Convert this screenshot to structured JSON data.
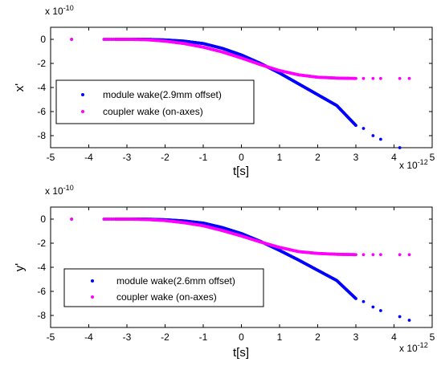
{
  "chart_data": [
    {
      "type": "scatter",
      "title": "",
      "xlabel": "t[s]",
      "ylabel": "x'",
      "x_multiplier": "x 10",
      "x_exponent": "-12",
      "y_multiplier": "x 10",
      "y_exponent": "-10",
      "xlim": [
        -5,
        5
      ],
      "ylim": [
        -9,
        1
      ],
      "xticks": [
        "-5",
        "-4",
        "-3",
        "-2",
        "-1",
        "0",
        "1",
        "2",
        "3",
        "4",
        "5"
      ],
      "yticks": [
        "0",
        "-2",
        "-4",
        "-6",
        "-8"
      ],
      "grid": false,
      "legend_position": "lower-left",
      "series": [
        {
          "name": "module wake(2.9mm offset)",
          "color": "#0000ff",
          "points": [
            [
              -4.45,
              0
            ],
            [
              -3.6,
              0
            ],
            [
              -3.3,
              0
            ],
            [
              -3.0,
              0
            ],
            [
              -2.5,
              0
            ],
            [
              -2.0,
              -0.05
            ],
            [
              -1.5,
              -0.15
            ],
            [
              -1.0,
              -0.35
            ],
            [
              -0.5,
              -0.75
            ],
            [
              0.0,
              -1.3
            ],
            [
              0.5,
              -2.0
            ],
            [
              1.0,
              -2.8
            ],
            [
              1.5,
              -3.7
            ],
            [
              2.0,
              -4.6
            ],
            [
              2.5,
              -5.5
            ],
            [
              3.0,
              -7.15
            ],
            [
              3.2,
              -7.4
            ],
            [
              3.45,
              -8.0
            ],
            [
              3.65,
              -8.3
            ],
            [
              4.15,
              -9.0
            ]
          ]
        },
        {
          "name": "coupler wake (on-axes)",
          "color": "#ff00ff",
          "points": [
            [
              -4.45,
              0
            ],
            [
              -3.6,
              0
            ],
            [
              -3.3,
              0
            ],
            [
              -3.0,
              0
            ],
            [
              -2.5,
              -0.03
            ],
            [
              -2.0,
              -0.15
            ],
            [
              -1.5,
              -0.35
            ],
            [
              -1.0,
              -0.65
            ],
            [
              -0.5,
              -1.05
            ],
            [
              0.0,
              -1.55
            ],
            [
              0.5,
              -2.1
            ],
            [
              1.0,
              -2.6
            ],
            [
              1.5,
              -2.95
            ],
            [
              2.0,
              -3.15
            ],
            [
              2.5,
              -3.22
            ],
            [
              3.0,
              -3.25
            ],
            [
              3.2,
              -3.25
            ],
            [
              3.45,
              -3.25
            ],
            [
              3.65,
              -3.25
            ],
            [
              4.15,
              -3.25
            ],
            [
              4.4,
              -3.25
            ]
          ]
        }
      ]
    },
    {
      "type": "scatter",
      "title": "",
      "xlabel": "t[s]",
      "ylabel": "y'",
      "x_multiplier": "x 10",
      "x_exponent": "-12",
      "y_multiplier": "x 10",
      "y_exponent": "-10",
      "xlim": [
        -5,
        5
      ],
      "ylim": [
        -9,
        1
      ],
      "xticks": [
        "-5",
        "-4",
        "-3",
        "-2",
        "-1",
        "0",
        "1",
        "2",
        "3",
        "4",
        "5"
      ],
      "yticks": [
        "0",
        "-2",
        "-4",
        "-6",
        "-8"
      ],
      "grid": false,
      "legend_position": "lower-left",
      "series": [
        {
          "name": "module wake(2.6mm offset)",
          "color": "#0000ff",
          "points": [
            [
              -4.45,
              0
            ],
            [
              -3.6,
              0
            ],
            [
              -3.3,
              0
            ],
            [
              -3.0,
              0
            ],
            [
              -2.5,
              0
            ],
            [
              -2.0,
              -0.05
            ],
            [
              -1.5,
              -0.15
            ],
            [
              -1.0,
              -0.33
            ],
            [
              -0.5,
              -0.7
            ],
            [
              0.0,
              -1.2
            ],
            [
              0.5,
              -1.85
            ],
            [
              1.0,
              -2.6
            ],
            [
              1.5,
              -3.4
            ],
            [
              2.0,
              -4.25
            ],
            [
              2.5,
              -5.1
            ],
            [
              3.0,
              -6.6
            ],
            [
              3.2,
              -6.85
            ],
            [
              3.45,
              -7.3
            ],
            [
              3.65,
              -7.6
            ],
            [
              4.15,
              -8.1
            ],
            [
              4.4,
              -8.4
            ]
          ]
        },
        {
          "name": "coupler wake (on-axes)",
          "color": "#ff00ff",
          "points": [
            [
              -4.45,
              0
            ],
            [
              -3.6,
              0
            ],
            [
              -3.3,
              0
            ],
            [
              -3.0,
              0
            ],
            [
              -2.5,
              -0.03
            ],
            [
              -2.0,
              -0.12
            ],
            [
              -1.5,
              -0.3
            ],
            [
              -1.0,
              -0.55
            ],
            [
              -0.5,
              -0.95
            ],
            [
              0.0,
              -1.4
            ],
            [
              0.5,
              -1.9
            ],
            [
              1.0,
              -2.35
            ],
            [
              1.5,
              -2.7
            ],
            [
              2.0,
              -2.85
            ],
            [
              2.5,
              -2.92
            ],
            [
              3.0,
              -2.95
            ],
            [
              3.2,
              -2.95
            ],
            [
              3.45,
              -2.95
            ],
            [
              3.65,
              -2.95
            ],
            [
              4.15,
              -2.95
            ],
            [
              4.4,
              -2.95
            ]
          ]
        }
      ]
    }
  ]
}
